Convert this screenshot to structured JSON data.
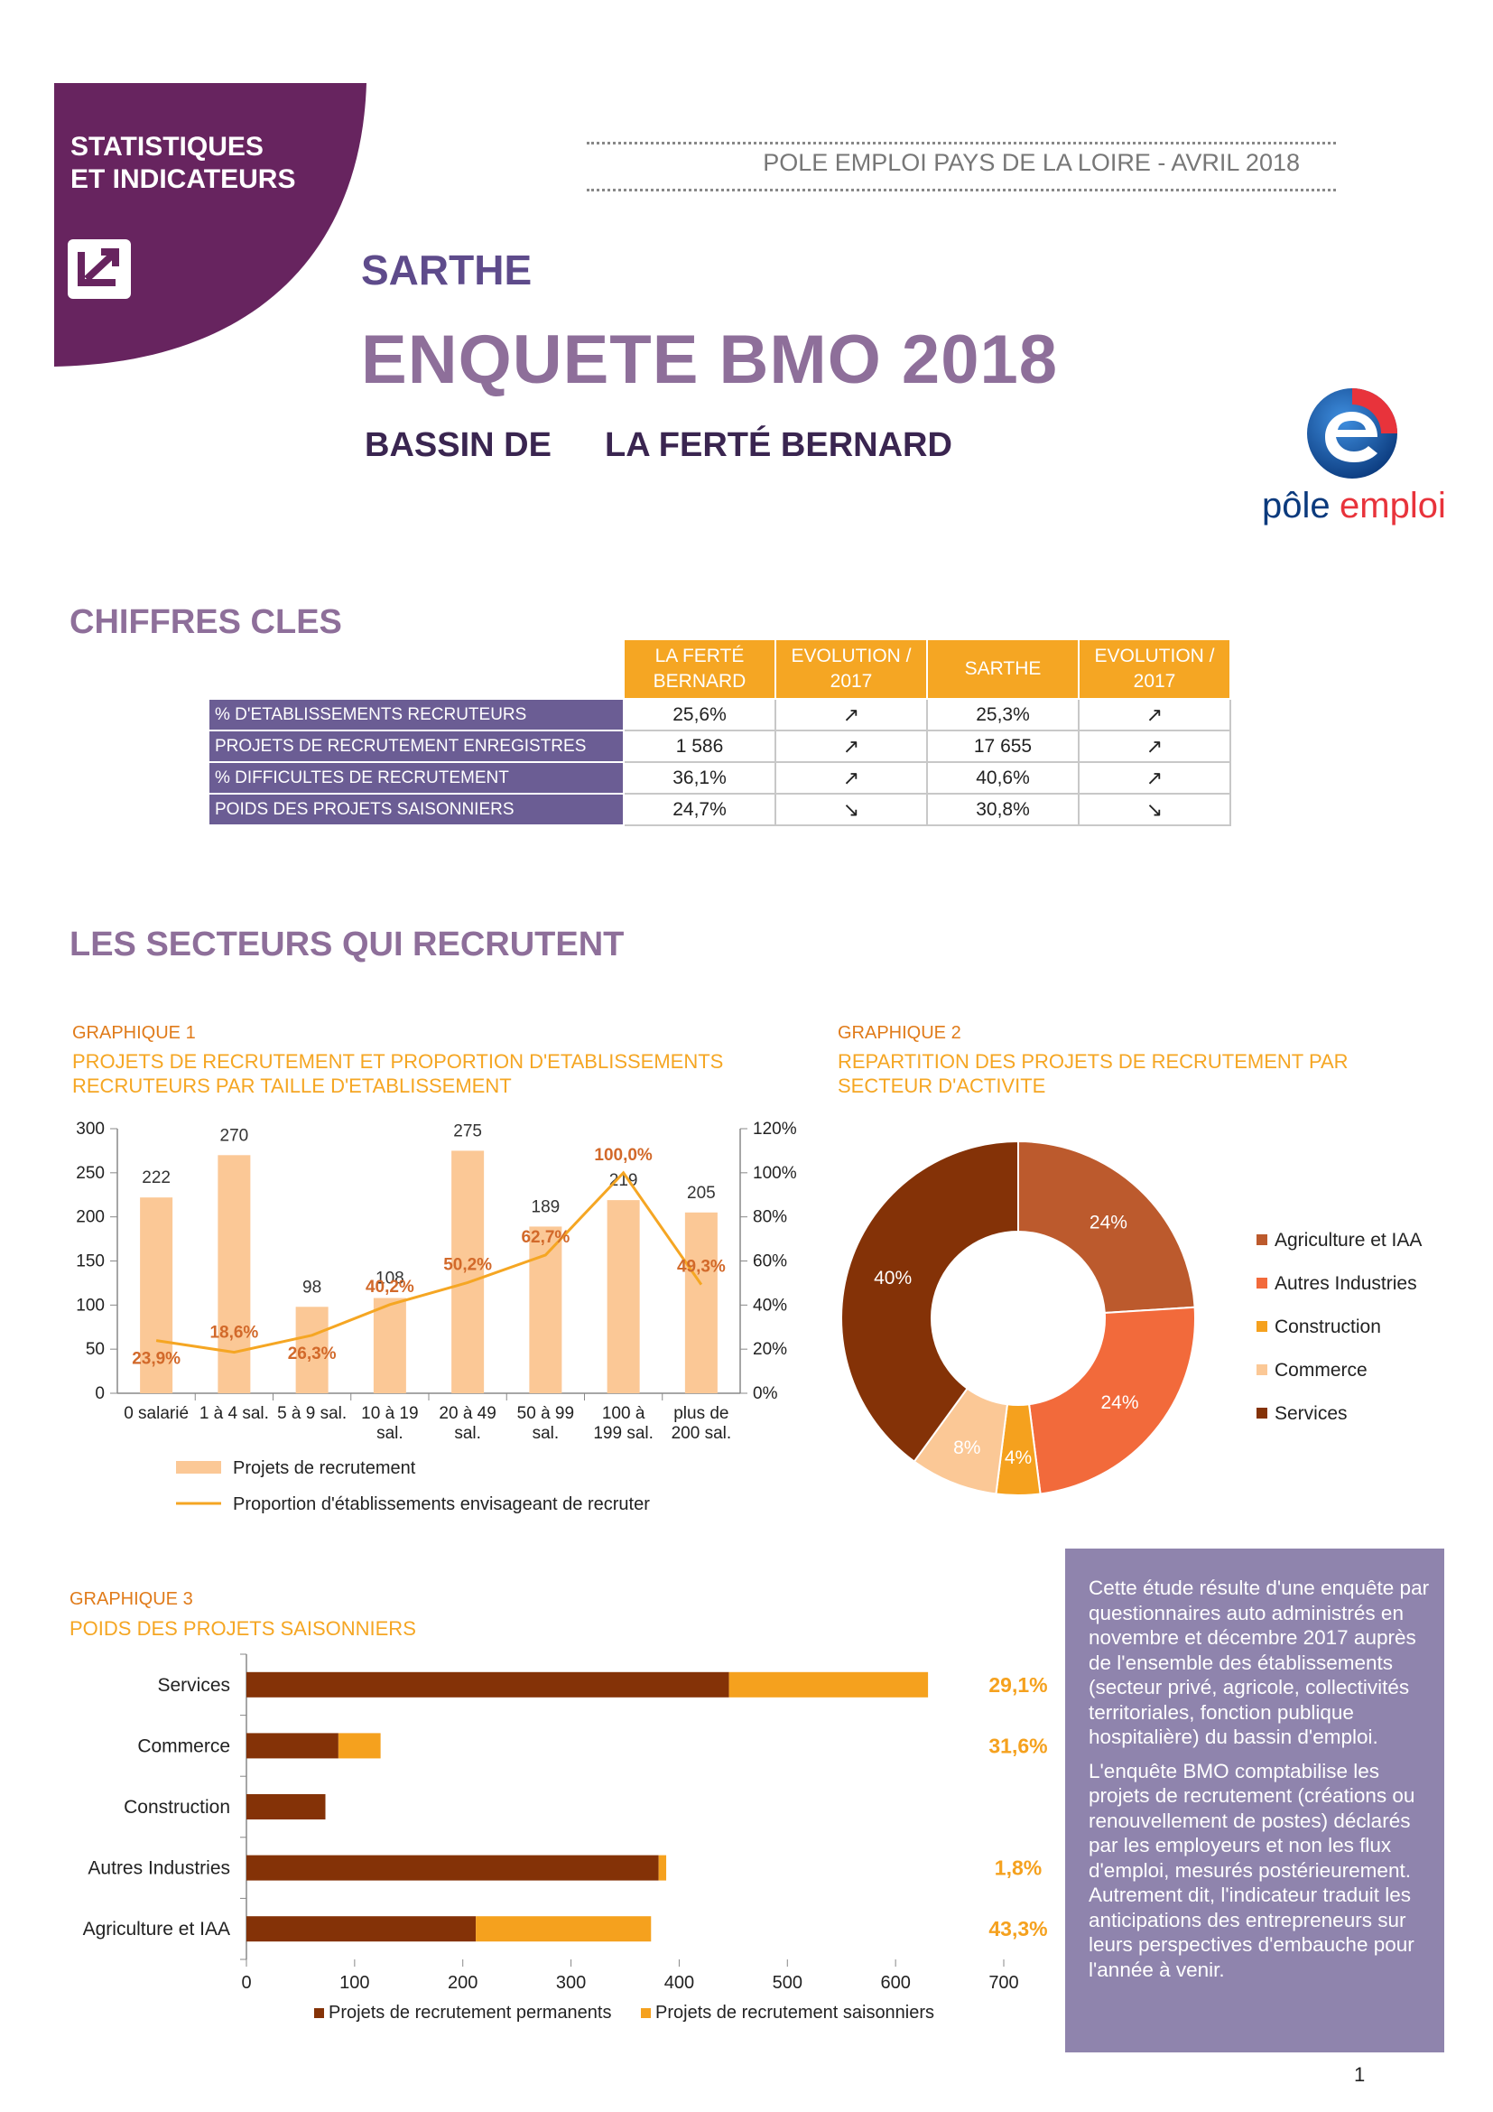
{
  "header": {
    "badge_line1": "STATISTIQUES",
    "badge_line2": "ET INDICATEURS",
    "org_date": "POLE EMPLOI PAYS DE LA LOIRE - AVRIL 2018",
    "department": "SARTHE",
    "title": "ENQUETE BMO 2018",
    "bassin_label": "BASSIN DE",
    "bassin_name": "LA FERTÉ BERNARD",
    "logo_text_1": "pôle",
    "logo_text_2": "emploi"
  },
  "key_figures": {
    "title": "CHIFFRES CLES",
    "columns": [
      "LA FERTÉ BERNARD",
      "EVOLUTION / 2017",
      "SARTHE",
      "EVOLUTION / 2017"
    ],
    "rows": [
      {
        "label": "% D'ETABLISSEMENTS RECRUTEURS",
        "local": "25,6%",
        "local_evo": "↗",
        "dept": "25,3%",
        "dept_evo": "↗"
      },
      {
        "label": "PROJETS DE RECRUTEMENT ENREGISTRES",
        "local": "1 586",
        "local_evo": "↗",
        "dept": "17 655",
        "dept_evo": "↗"
      },
      {
        "label": "% DIFFICULTES DE RECRUTEMENT",
        "local": "36,1%",
        "local_evo": "↗",
        "dept": "40,6%",
        "dept_evo": "↗"
      },
      {
        "label": "POIDS DES PROJETS SAISONNIERS",
        "local": "24,7%",
        "local_evo": "↘",
        "dept": "30,8%",
        "dept_evo": "↘"
      }
    ]
  },
  "sectors": {
    "title": "LES SECTEURS QUI RECRUTENT"
  },
  "graph1": {
    "label": "GRAPHIQUE 1",
    "title_line1": "PROJETS DE RECRUTEMENT ET PROPORTION D'ETABLISSEMENTS",
    "title_line2": "RECRUTEURS PAR TAILLE D'ETABLISSEMENT"
  },
  "graph2": {
    "label": "GRAPHIQUE 2",
    "title_line1": "REPARTITION DES PROJETS DE RECRUTEMENT PAR",
    "title_line2": "SECTEUR D'ACTIVITE"
  },
  "graph3": {
    "label": "GRAPHIQUE 3",
    "title": "POIDS DES PROJETS SAISONNIERS"
  },
  "chart_data": [
    {
      "type": "bar",
      "categories": [
        [
          "0 salarié"
        ],
        [
          "1 à 4 sal."
        ],
        [
          "5 à 9 sal."
        ],
        [
          "10 à 19",
          "sal."
        ],
        [
          "20 à 49",
          "sal."
        ],
        [
          "50 à 99",
          "sal."
        ],
        [
          "100 à",
          "199 sal."
        ],
        [
          "plus de",
          "200 sal."
        ]
      ],
      "series": [
        {
          "name": "Projets de recrutement",
          "values": [
            222,
            270,
            98,
            108,
            275,
            189,
            219,
            205
          ],
          "labels": [
            "222",
            "270",
            "98",
            "108",
            "275",
            "189",
            "219",
            "205"
          ],
          "color": "#fbc896"
        },
        {
          "name": "Proportion d'établissements envisageant de recruter",
          "values": [
            23.9,
            18.6,
            26.3,
            40.2,
            50.2,
            62.7,
            100.0,
            49.3
          ],
          "labels": [
            "23,9%",
            "18,6%",
            "26,3%",
            "40,2%",
            "50,2%",
            "62,7%",
            "100,0%",
            "49,3%"
          ],
          "color": "#f5a623",
          "label_color": "#d2692a"
        }
      ],
      "ylim": [
        0,
        300
      ],
      "yticks": [
        "0",
        "50",
        "100",
        "150",
        "200",
        "250",
        "300"
      ],
      "y2lim": [
        0,
        120
      ],
      "y2ticks": [
        "0%",
        "20%",
        "40%",
        "60%",
        "80%",
        "100%",
        "120%"
      ]
    },
    {
      "type": "pie",
      "labels": [
        "Agriculture et IAA",
        "Autres Industries",
        "Construction",
        "Commerce",
        "Services"
      ],
      "values": [
        24,
        24,
        4,
        8,
        40
      ],
      "value_labels": [
        "24%",
        "24%",
        "4%",
        "8%",
        "40%"
      ],
      "colors": [
        "#bc5a2d",
        "#f26a3b",
        "#f5a11e",
        "#fbc896",
        "#843207"
      ]
    },
    {
      "type": "bar",
      "orientation": "horizontal",
      "categories": [
        "Services",
        "Commerce",
        "Construction",
        "Autres Industries",
        "Agriculture et IAA"
      ],
      "series": [
        {
          "name": "Projets de recrutement permanents",
          "values": [
            446,
            85,
            73,
            381,
            212
          ],
          "color": "#843207"
        },
        {
          "name": "Projets de recrutement saisonniers",
          "values": [
            184,
            39,
            0,
            7,
            162
          ],
          "color": "#f5a11e"
        }
      ],
      "share_labels": [
        "29,1%",
        "31,6%",
        "",
        "1,8%",
        "43,3%"
      ],
      "xlim": [
        0,
        700
      ],
      "xticks": [
        "0",
        "100",
        "200",
        "300",
        "400",
        "500",
        "600",
        "700"
      ]
    }
  ],
  "note": {
    "paragraph1": "Cette étude résulte d'une enquête par questionnaires auto administrés en novembre et décembre 2017 auprès de l'ensemble des établissements (secteur privé, agricole, collectivités territoriales, fonction publique hospitalière) du bassin d'emploi.",
    "paragraph2": "L'enquête BMO comptabilise les projets de recrutement (créations ou renouvellement de postes) déclarés par les employeurs et non les flux d'emploi, mesurés postérieurement. Autrement dit, l'indicateur traduit les anticipations des entrepreneurs sur leurs perspectives d'embauche pour l'année à venir."
  },
  "page_number": "1"
}
